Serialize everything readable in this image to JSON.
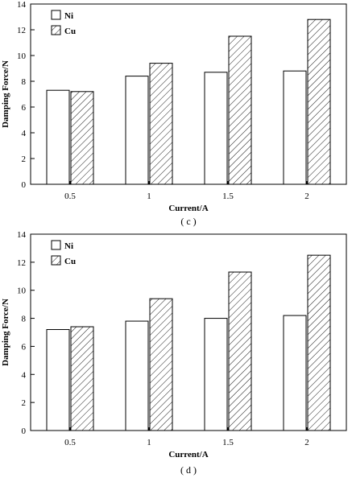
{
  "chart_data": [
    {
      "type": "bar",
      "caption": "( c )",
      "categories": [
        "0.5",
        "1",
        "1.5",
        "2"
      ],
      "series": [
        {
          "name": "Ni",
          "values": [
            7.3,
            8.4,
            8.7,
            8.8
          ]
        },
        {
          "name": "Cu",
          "values": [
            7.2,
            9.4,
            11.5,
            12.8
          ]
        }
      ],
      "xlabel": "Current/A",
      "ylabel": "Damping Force/N",
      "ylim": [
        0,
        14
      ],
      "yticks": [
        "0",
        "2",
        "4",
        "6",
        "8",
        "10",
        "12",
        "14"
      ],
      "grid": false,
      "legend_position": "top-left",
      "series_fill": {
        "Ni": "empty",
        "Cu": "diagonal-hatch"
      }
    },
    {
      "type": "bar",
      "caption": "( d )",
      "categories": [
        "0.5",
        "1",
        "1.5",
        "2"
      ],
      "series": [
        {
          "name": "Ni",
          "values": [
            7.2,
            7.8,
            8.0,
            8.2
          ]
        },
        {
          "name": "Cu",
          "values": [
            7.4,
            9.4,
            11.3,
            12.5
          ]
        }
      ],
      "xlabel": "Current/A",
      "ylabel": "Damping Force/N",
      "ylim": [
        0,
        14
      ],
      "yticks": [
        "0",
        "2",
        "4",
        "6",
        "8",
        "10",
        "12",
        "14"
      ],
      "grid": false,
      "legend_position": "top-left",
      "series_fill": {
        "Ni": "empty",
        "Cu": "diagonal-hatch"
      }
    }
  ]
}
